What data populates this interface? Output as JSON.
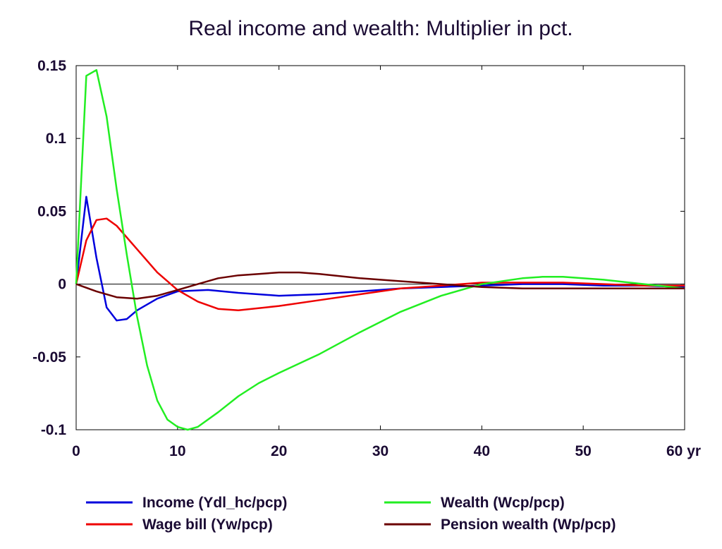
{
  "chart_data": {
    "type": "line",
    "title": "Real income and wealth: Multiplier in pct.",
    "xlabel": "",
    "ylabel": "",
    "xlim": [
      0,
      60
    ],
    "ylim": [
      -0.1,
      0.15
    ],
    "x_ticks": [
      0,
      10,
      20,
      30,
      40,
      50,
      60
    ],
    "x_tick_labels": [
      "0",
      "10",
      "20",
      "30",
      "40",
      "50",
      "60 yr"
    ],
    "y_ticks": [
      0.15,
      0.1,
      0.05,
      0,
      -0.05,
      -0.1
    ],
    "y_tick_labels": [
      "0.15",
      "0.1",
      "0.05",
      "0",
      "-0.05",
      "-0.1"
    ],
    "grid": false,
    "zero_line": true,
    "legend": "bottom",
    "series": [
      {
        "name": "Income (Ydl_hc/pcp)",
        "color": "#0000dd",
        "x": [
          0,
          1,
          2,
          3,
          4,
          5,
          6,
          8,
          10,
          13,
          16,
          20,
          24,
          28,
          32,
          36,
          40,
          44,
          48,
          52,
          56,
          60
        ],
        "y": [
          0,
          0.06,
          0.018,
          -0.016,
          -0.025,
          -0.024,
          -0.018,
          -0.01,
          -0.005,
          -0.004,
          -0.006,
          -0.008,
          -0.007,
          -0.005,
          -0.003,
          -0.002,
          -0.001,
          0,
          0,
          -0.001,
          -0.001,
          -0.002
        ]
      },
      {
        "name": "Wage bill (Yw/pcp)",
        "color": "#ee0000",
        "x": [
          0,
          1,
          2,
          3,
          4,
          6,
          8,
          10,
          12,
          14,
          16,
          20,
          24,
          28,
          32,
          36,
          40,
          44,
          48,
          52,
          56,
          60
        ],
        "y": [
          0,
          0.03,
          0.044,
          0.045,
          0.04,
          0.024,
          0.008,
          -0.004,
          -0.012,
          -0.017,
          -0.018,
          -0.015,
          -0.011,
          -0.007,
          -0.003,
          -0.001,
          0.001,
          0.001,
          0.001,
          0,
          -0.001,
          -0.001
        ]
      },
      {
        "name": "Wealth (Wcp/pcp)",
        "color": "#22ee22",
        "x": [
          0,
          1,
          2,
          3,
          4,
          5,
          6,
          7,
          8,
          9,
          10,
          11,
          12,
          14,
          16,
          18,
          20,
          24,
          28,
          32,
          36,
          40,
          44,
          46,
          48,
          52,
          56,
          60
        ],
        "y": [
          0,
          0.143,
          0.147,
          0.115,
          0.065,
          0.02,
          -0.022,
          -0.056,
          -0.08,
          -0.093,
          -0.098,
          -0.1,
          -0.098,
          -0.088,
          -0.077,
          -0.068,
          -0.061,
          -0.048,
          -0.033,
          -0.019,
          -0.008,
          0,
          0.004,
          0.005,
          0.005,
          0.003,
          0,
          -0.003
        ]
      },
      {
        "name": "Pension wealth (Wp/pcp)",
        "color": "#6b0000",
        "x": [
          0,
          2,
          4,
          6,
          8,
          10,
          12,
          14,
          16,
          18,
          20,
          22,
          24,
          28,
          32,
          36,
          40,
          44,
          48,
          52,
          56,
          60
        ],
        "y": [
          0,
          -0.005,
          -0.009,
          -0.01,
          -0.008,
          -0.004,
          0,
          0.004,
          0.006,
          0.007,
          0.008,
          0.008,
          0.007,
          0.004,
          0.002,
          0,
          -0.002,
          -0.003,
          -0.003,
          -0.003,
          -0.003,
          -0.003
        ]
      }
    ]
  }
}
